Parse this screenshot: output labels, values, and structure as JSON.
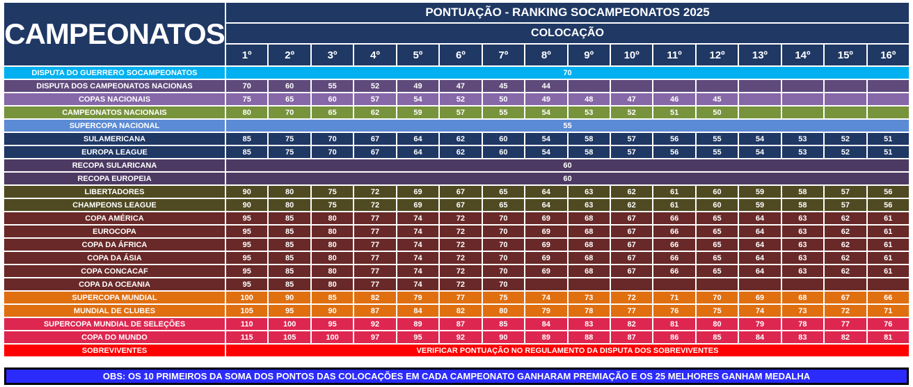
{
  "corner": {
    "label": "CAMPEONATOS"
  },
  "header": {
    "title": "PONTUAÇÃO - RANKING SOCAMPEONATOS 2025",
    "subtitle": "COLOCAÇÃO",
    "positions": [
      "1º",
      "2º",
      "3º",
      "4º",
      "5º",
      "6º",
      "7º",
      "8º",
      "9º",
      "10º",
      "11º",
      "12º",
      "13º",
      "14º",
      "15º",
      "16º"
    ]
  },
  "colors": {
    "header_bg": "#1F3864",
    "grid_border": "#FFFFFF",
    "text": "#FFFFFF",
    "footer_bg": "#2B2BFE",
    "footer_border": "#000000"
  },
  "rows": [
    {
      "label": "DISPUTA DO GUERRERO SOCAMPEONATOS",
      "color": "#00B0F0",
      "merged": "70"
    },
    {
      "label": "DISPUTA DOS CAMPEONATOS NACIONAS",
      "color": "#5F4A7B",
      "values": [
        "70",
        "60",
        "55",
        "52",
        "49",
        "47",
        "45",
        "44",
        "",
        "",
        "",
        "",
        "",
        "",
        "",
        ""
      ]
    },
    {
      "label": "COPAS NACIONAIS",
      "color": "#8667A8",
      "values": [
        "75",
        "65",
        "60",
        "57",
        "54",
        "52",
        "50",
        "49",
        "48",
        "47",
        "46",
        "45",
        "",
        "",
        "",
        ""
      ]
    },
    {
      "label": "CAMPEONATOS NACIONAIS",
      "color": "#77933C",
      "values": [
        "80",
        "70",
        "65",
        "62",
        "59",
        "57",
        "55",
        "54",
        "53",
        "52",
        "51",
        "50",
        "",
        "",
        "",
        ""
      ]
    },
    {
      "label": "SUPERCOPA NACIONAL",
      "color": "#5B8BD5",
      "merged": "55"
    },
    {
      "label": "SULAMERICANA",
      "color": "#1F3864",
      "values": [
        "85",
        "75",
        "70",
        "67",
        "64",
        "62",
        "60",
        "54",
        "58",
        "57",
        "56",
        "55",
        "54",
        "53",
        "52",
        "51"
      ]
    },
    {
      "label": "EUROPA LEAGUE",
      "color": "#1F3864",
      "values": [
        "85",
        "75",
        "70",
        "67",
        "64",
        "62",
        "60",
        "54",
        "58",
        "57",
        "56",
        "55",
        "54",
        "53",
        "52",
        "51"
      ]
    },
    {
      "label": "RECOPA SULARICANA",
      "color": "#4D3A63",
      "merged": "60"
    },
    {
      "label": "RECOPA EUROPEIA",
      "color": "#4D3A63",
      "merged": "60"
    },
    {
      "label": "LIBERTADORES",
      "color": "#4F4A21",
      "values": [
        "90",
        "80",
        "75",
        "72",
        "69",
        "67",
        "65",
        "64",
        "63",
        "62",
        "61",
        "60",
        "59",
        "58",
        "57",
        "56"
      ]
    },
    {
      "label": "CHAMPEONS LEAGUE",
      "color": "#4F4A21",
      "values": [
        "90",
        "80",
        "75",
        "72",
        "69",
        "67",
        "65",
        "64",
        "63",
        "62",
        "61",
        "60",
        "59",
        "58",
        "57",
        "56"
      ]
    },
    {
      "label": "COPA AMÉRICA",
      "color": "#682928",
      "values": [
        "95",
        "85",
        "80",
        "77",
        "74",
        "72",
        "70",
        "69",
        "68",
        "67",
        "66",
        "65",
        "64",
        "63",
        "62",
        "61"
      ]
    },
    {
      "label": "EUROCOPA",
      "color": "#682928",
      "values": [
        "95",
        "85",
        "80",
        "77",
        "74",
        "72",
        "70",
        "69",
        "68",
        "67",
        "66",
        "65",
        "64",
        "63",
        "62",
        "61"
      ]
    },
    {
      "label": "COPA DA ÁFRICA",
      "color": "#682928",
      "values": [
        "95",
        "85",
        "80",
        "77",
        "74",
        "72",
        "70",
        "69",
        "68",
        "67",
        "66",
        "65",
        "64",
        "63",
        "62",
        "61"
      ]
    },
    {
      "label": "COPA DA ÁSIA",
      "color": "#682928",
      "values": [
        "95",
        "85",
        "80",
        "77",
        "74",
        "72",
        "70",
        "69",
        "68",
        "67",
        "66",
        "65",
        "64",
        "63",
        "62",
        "61"
      ]
    },
    {
      "label": "COPA CONCACAF",
      "color": "#682928",
      "values": [
        "95",
        "85",
        "80",
        "77",
        "74",
        "72",
        "70",
        "69",
        "68",
        "67",
        "66",
        "65",
        "64",
        "63",
        "62",
        "61"
      ]
    },
    {
      "label": "COPA DA OCEANIA",
      "color": "#682928",
      "values": [
        "95",
        "85",
        "80",
        "77",
        "74",
        "72",
        "70",
        "",
        "",
        "",
        "",
        "",
        "",
        "",
        "",
        ""
      ]
    },
    {
      "label": "SUPERCOPA MUNDIAL",
      "color": "#E06F10",
      "values": [
        "100",
        "90",
        "85",
        "82",
        "79",
        "77",
        "75",
        "74",
        "73",
        "72",
        "71",
        "70",
        "69",
        "68",
        "67",
        "66"
      ]
    },
    {
      "label": "MUNDIAL DE CLUBES",
      "color": "#E06F10",
      "values": [
        "105",
        "95",
        "90",
        "87",
        "84",
        "82",
        "80",
        "79",
        "78",
        "77",
        "76",
        "75",
        "74",
        "73",
        "72",
        "71"
      ]
    },
    {
      "label": "SUPERCOPA MUNDIAL DE SELEÇÕES",
      "color": "#DD2750",
      "values": [
        "110",
        "100",
        "95",
        "92",
        "89",
        "87",
        "85",
        "84",
        "83",
        "82",
        "81",
        "80",
        "79",
        "78",
        "77",
        "76"
      ]
    },
    {
      "label": "COPA DO MUNDO",
      "color": "#DD2750",
      "values": [
        "115",
        "105",
        "100",
        "97",
        "95",
        "92",
        "90",
        "89",
        "88",
        "87",
        "86",
        "85",
        "84",
        "83",
        "82",
        "81"
      ]
    },
    {
      "label": "SOBREVIVENTES",
      "color": "#FE0000",
      "merged": "VERIFICAR PONTUAÇÃO NO REGULAMENTO DA DISPUTA DOS SOBREVIVENTES"
    }
  ],
  "footer": {
    "note": "OBS: OS 10 PRIMEIROS DA SOMA DOS PONTOS DAS COLOCAÇÕES EM CADA CAMPEONATO GANHARAM PREMIAÇÃO E OS 25 MELHORES GANHAM MEDALHA"
  }
}
